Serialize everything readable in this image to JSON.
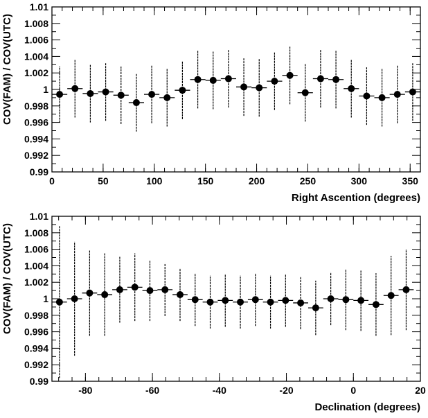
{
  "chart_data": [
    {
      "type": "scatter",
      "xlabel": "Right Ascention (degrees)",
      "ylabel": "COV(FAM) / COV(UTC)",
      "xlim": [
        0,
        360
      ],
      "ylim": [
        0.99,
        1.01
      ],
      "xticks": [
        0,
        50,
        100,
        150,
        200,
        250,
        300,
        350
      ],
      "xtick_labels": [
        "0",
        "50",
        "100",
        "150",
        "200",
        "250",
        "300",
        "350"
      ],
      "yticks": [
        0.99,
        0.992,
        0.994,
        0.996,
        0.998,
        1.0,
        1.002,
        1.004,
        1.006,
        1.008,
        1.01
      ],
      "ytick_labels": [
        "0.99",
        "0.992",
        "0.994",
        "0.996",
        "0.998",
        "1",
        "1.002",
        "1.004",
        "1.006",
        "1.008",
        "1.01"
      ],
      "x_bin_half_width": 7.5,
      "series": [
        {
          "x": [
            7.5,
            22.5,
            37.5,
            52.5,
            67.5,
            82.5,
            97.5,
            112.5,
            127.5,
            142.5,
            157.5,
            172.5,
            187.5,
            202.5,
            217.5,
            232.5,
            247.5,
            262.5,
            277.5,
            292.5,
            307.5,
            322.5,
            337.5,
            352.5
          ],
          "y": [
            0.9994,
            1.0001,
            0.9995,
            0.9997,
            0.9993,
            0.9984,
            0.9994,
            0.999,
            0.9999,
            1.0012,
            1.0011,
            1.0013,
            1.0003,
            1.0002,
            1.001,
            1.0017,
            0.9996,
            1.0013,
            1.0012,
            1.0001,
            0.9992,
            0.999,
            0.9994,
            0.9997
          ],
          "yerr": [
            0.0034,
            0.0035,
            0.0035,
            0.0035,
            0.0035,
            0.0035,
            0.0035,
            0.0035,
            0.0035,
            0.0035,
            0.0035,
            0.0035,
            0.0035,
            0.0035,
            0.0035,
            0.0035,
            0.0035,
            0.0035,
            0.0035,
            0.0035,
            0.0035,
            0.0035,
            0.0035,
            0.0035
          ]
        }
      ]
    },
    {
      "type": "scatter",
      "xlabel": "Declination (degrees)",
      "ylabel": "COV(FAM) / COV(UTC)",
      "xlim": [
        -90,
        20
      ],
      "ylim": [
        0.99,
        1.01
      ],
      "xticks": [
        -80,
        -60,
        -40,
        -20,
        0,
        20
      ],
      "xtick_labels": [
        "-80",
        "-60",
        "-40",
        "-20",
        "0",
        "20"
      ],
      "yticks": [
        0.99,
        0.992,
        0.994,
        0.996,
        0.998,
        1.0,
        1.002,
        1.004,
        1.006,
        1.008,
        1.01
      ],
      "ytick_labels": [
        "0.99",
        "0.992",
        "0.994",
        "0.996",
        "0.998",
        "1",
        "1.002",
        "1.004",
        "1.006",
        "1.008",
        "1.01"
      ],
      "x_bin_half_width": 2.25,
      "series": [
        {
          "x": [
            -87.75,
            -83.25,
            -78.75,
            -74.25,
            -69.75,
            -65.25,
            -60.75,
            -56.25,
            -51.75,
            -47.25,
            -42.75,
            -38.25,
            -33.75,
            -29.25,
            -24.75,
            -20.25,
            -15.75,
            -11.25,
            -6.75,
            -2.25,
            2.25,
            6.75,
            11.25,
            15.75
          ],
          "y": [
            0.9996,
            1.0,
            1.0007,
            1.0005,
            1.0011,
            1.0014,
            1.001,
            1.0011,
            1.0005,
            0.9999,
            0.9996,
            0.9998,
            0.9996,
            0.9999,
            0.9996,
            0.9998,
            0.9995,
            0.9989,
            1.0,
            0.9999,
            0.9998,
            0.9993,
            1.0004,
            1.0011
          ],
          "yerr": [
            0.0092,
            0.0069,
            0.0052,
            0.005,
            0.004,
            0.0041,
            0.0037,
            0.0032,
            0.0032,
            0.0032,
            0.0032,
            0.0032,
            0.0032,
            0.0032,
            0.0032,
            0.0032,
            0.0032,
            0.0033,
            0.0032,
            0.0037,
            0.0037,
            0.0038,
            0.0048,
            0.0049
          ]
        }
      ]
    }
  ]
}
